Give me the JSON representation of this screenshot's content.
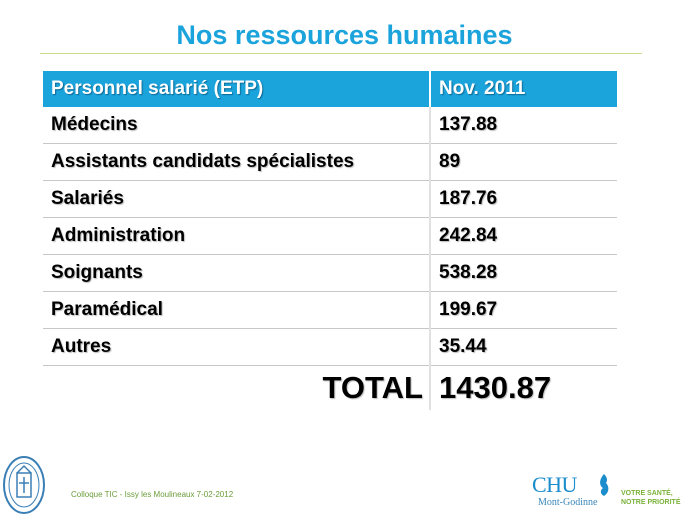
{
  "title": "Nos ressources humaines",
  "table": {
    "headers": [
      "Personnel salarié (ETP)",
      "Nov. 2011"
    ],
    "rows": [
      [
        "Médecins",
        "137.88"
      ],
      [
        "Assistants candidats spécialistes",
        "89"
      ],
      [
        "Salariés",
        "187.76"
      ],
      [
        "Administration",
        "242.84"
      ],
      [
        "Soignants",
        "538.28"
      ],
      [
        "Paramédical",
        "199.67"
      ],
      [
        "Autres",
        "35.44"
      ]
    ],
    "total_label": "TOTAL",
    "total_value": "1430.87"
  },
  "footer": "Colloque TIC - Issy les Moulineaux 7-02-2012",
  "logo": {
    "name": "CHU",
    "subtitle": "Mont-Godinne",
    "slogan_line1": "VOTRE SANTÉ,",
    "slogan_line2": "NOTRE PRIORITÉ"
  },
  "colors": {
    "accent": "#1ba3dc",
    "rule": "#c9dc8a",
    "footer": "#6b9c3a"
  }
}
